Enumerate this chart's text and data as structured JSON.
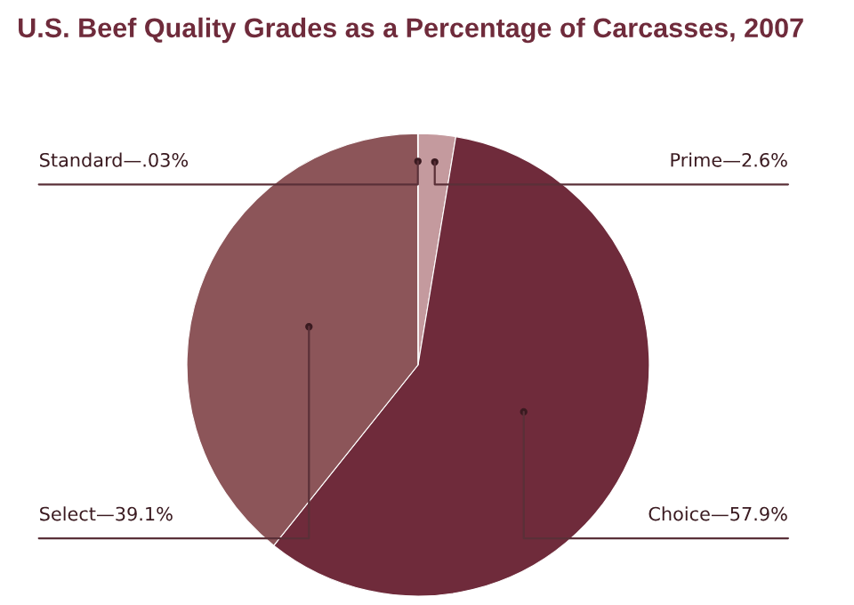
{
  "chart_data": {
    "type": "pie",
    "title": "U.S. Beef Quality Grades as a Percentage of Carcasses, 2007",
    "categories": [
      "Prime—2.6%",
      "Choice—57.9%",
      "Select—39.1%",
      "Standard—.03%"
    ],
    "values": [
      2.6,
      57.9,
      39.1,
      0.03
    ],
    "colors": [
      "#c49a9e",
      "#6f2b3b",
      "#8c5559",
      "#dcc0c3"
    ]
  }
}
